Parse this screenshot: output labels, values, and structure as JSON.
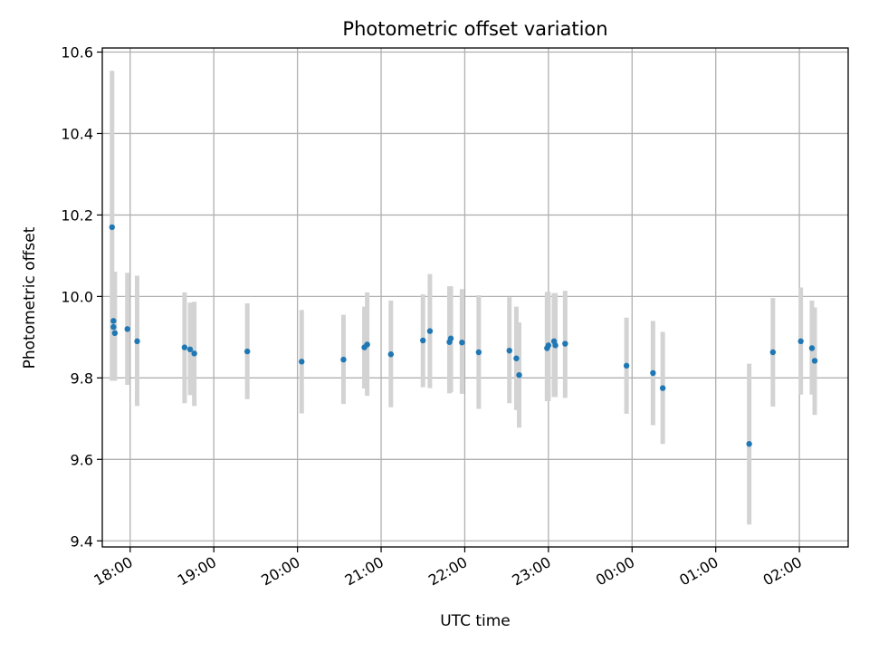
{
  "chart_data": {
    "type": "scatter",
    "title": "Photometric offset variation",
    "xlabel": "UTC time",
    "ylabel": "Photometric offset",
    "grid": true,
    "legend": "none",
    "colors": {
      "point": "#1f77b4",
      "errorbar": "#d3d3d3"
    },
    "xlim": [
      "17:40",
      "02:35"
    ],
    "ylim": [
      9.385,
      10.61
    ],
    "x_ticks": [
      "18:00",
      "19:00",
      "20:00",
      "21:00",
      "22:00",
      "23:00",
      "00:00",
      "01:00",
      "02:00"
    ],
    "y_ticks": [
      "9.4",
      "9.6",
      "9.8",
      "10.0",
      "10.2",
      "10.4",
      "10.6"
    ],
    "series": [
      {
        "x": [
          "17:47",
          "17:48",
          "17:48",
          "17:49",
          "17:58",
          "18:05",
          "18:39",
          "18:43",
          "18:46",
          "19:24",
          "20:03",
          "20:33",
          "20:48",
          "20:50",
          "21:07",
          "21:30",
          "21:35",
          "21:49",
          "21:50",
          "21:58",
          "22:10",
          "22:32",
          "22:37",
          "22:39",
          "22:59",
          "23:00",
          "23:04",
          "23:05",
          "23:12",
          "23:56",
          "00:15",
          "00:22",
          "01:24",
          "01:41",
          "02:01",
          "02:09",
          "02:11"
        ],
        "y": [
          10.17,
          9.94,
          9.925,
          9.91,
          9.92,
          9.89,
          9.875,
          9.87,
          9.86,
          9.865,
          9.84,
          9.845,
          9.875,
          9.882,
          9.858,
          9.892,
          9.915,
          9.888,
          9.897,
          9.887,
          9.863,
          9.867,
          9.848,
          9.807,
          9.873,
          9.88,
          9.89,
          9.88,
          9.884,
          9.83,
          9.812,
          9.775,
          9.638,
          9.863,
          9.89,
          9.873,
          9.842
        ],
        "y_low": [
          9.793,
          9.793,
          9.793,
          9.793,
          9.783,
          9.731,
          9.738,
          9.758,
          9.731,
          9.748,
          9.713,
          9.736,
          9.774,
          9.756,
          9.728,
          9.777,
          9.775,
          9.762,
          9.765,
          9.761,
          9.724,
          9.738,
          9.721,
          9.678,
          9.743,
          9.743,
          9.753,
          9.753,
          9.751,
          9.712,
          9.684,
          9.638,
          9.44,
          9.73,
          9.759,
          9.759,
          9.709
        ],
        "y_high": [
          10.554,
          10.061,
          10.061,
          10.061,
          10.058,
          10.051,
          10.01,
          9.985,
          9.987,
          9.983,
          9.967,
          9.955,
          9.975,
          10.01,
          9.99,
          10.005,
          10.055,
          10.025,
          10.025,
          10.018,
          10.003,
          9.998,
          9.975,
          9.936,
          10.011,
          10.011,
          10.008,
          10.008,
          10.014,
          9.948,
          9.94,
          9.913,
          9.835,
          9.996,
          10.022,
          9.99,
          9.973
        ]
      }
    ]
  }
}
